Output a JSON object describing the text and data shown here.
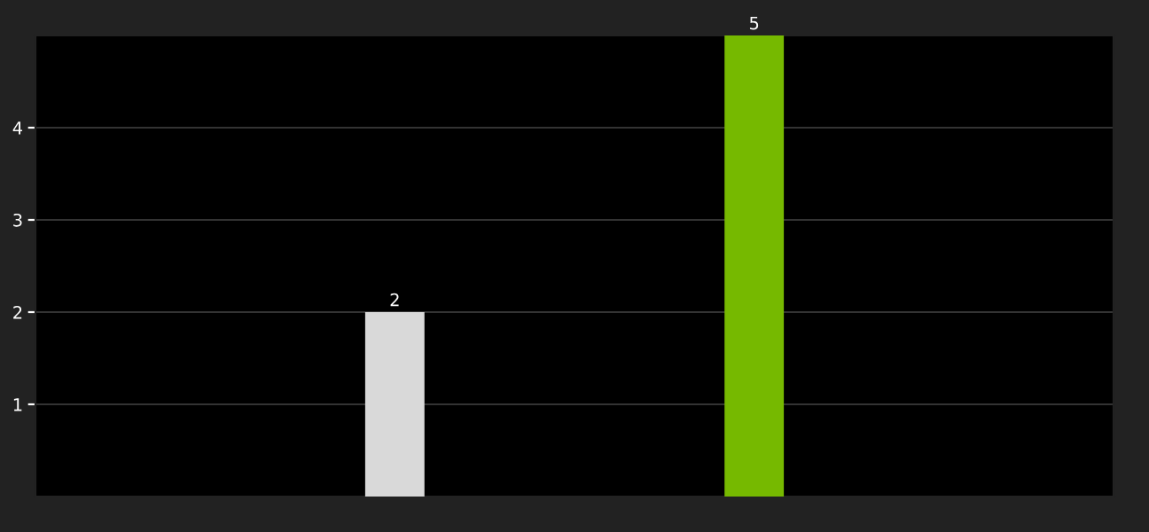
{
  "chart_data": {
    "type": "bar",
    "categories": [
      null,
      null
    ],
    "values": [
      2,
      5
    ],
    "colors": [
      "#d9d9d9",
      "#76b900"
    ],
    "ylim": [
      0,
      5
    ],
    "yticks": [
      1,
      2,
      3,
      4
    ],
    "grid": "y",
    "data_labels": true
  }
}
